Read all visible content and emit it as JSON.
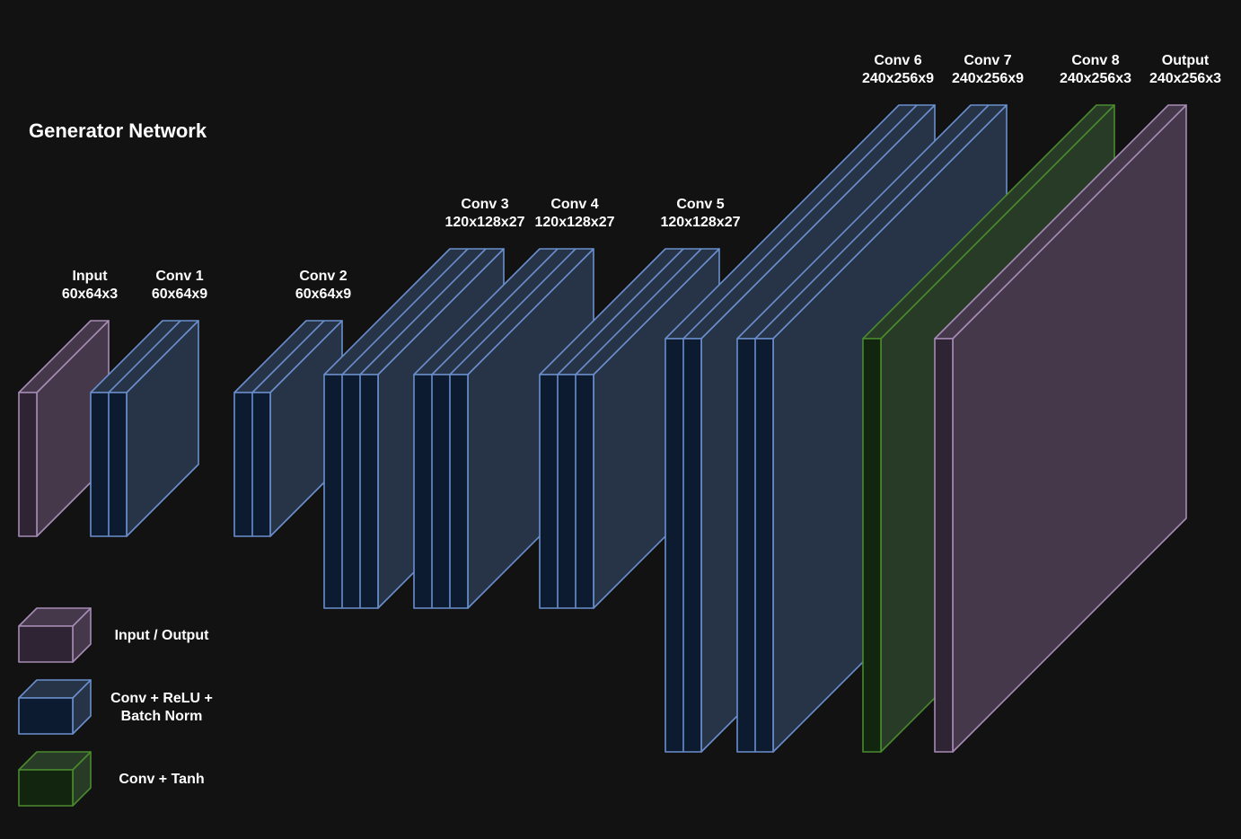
{
  "diagram": {
    "title": "Generator Network",
    "colors": {
      "background": "#121212",
      "io": {
        "front": "#2e2433",
        "side": "#45384a",
        "stroke": "#a68bb5"
      },
      "conv": {
        "front": "#0d1b30",
        "side": "#273347",
        "stroke": "#6a8fcc"
      },
      "tanh": {
        "front": "#12250f",
        "side": "#283b27",
        "stroke": "#4a8a2e"
      }
    },
    "layers": [
      {
        "name": "Input",
        "dims": "60x64x3",
        "kind": "io"
      },
      {
        "name": "Conv 1",
        "dims": "60x64x9",
        "kind": "conv"
      },
      {
        "name": "Conv 2",
        "dims": "60x64x9",
        "kind": "conv"
      },
      {
        "name": "Conv 3",
        "dims": "120x128x27",
        "kind": "conv"
      },
      {
        "name": "Conv 4",
        "dims": "120x128x27",
        "kind": "conv"
      },
      {
        "name": "Conv 5",
        "dims": "120x128x27",
        "kind": "conv"
      },
      {
        "name": "Conv 6",
        "dims": "240x256x9",
        "kind": "conv"
      },
      {
        "name": "Conv 7",
        "dims": "240x256x9",
        "kind": "conv"
      },
      {
        "name": "Conv 8",
        "dims": "240x256x3",
        "kind": "tanh"
      },
      {
        "name": "Output",
        "dims": "240x256x3",
        "kind": "io"
      }
    ],
    "legend": [
      {
        "kind": "io",
        "lines": [
          "Input / Output"
        ]
      },
      {
        "kind": "conv",
        "lines": [
          "Conv + ReLU +",
          "Batch Norm"
        ]
      },
      {
        "kind": "tanh",
        "lines": [
          "Conv + Tanh"
        ]
      }
    ]
  }
}
